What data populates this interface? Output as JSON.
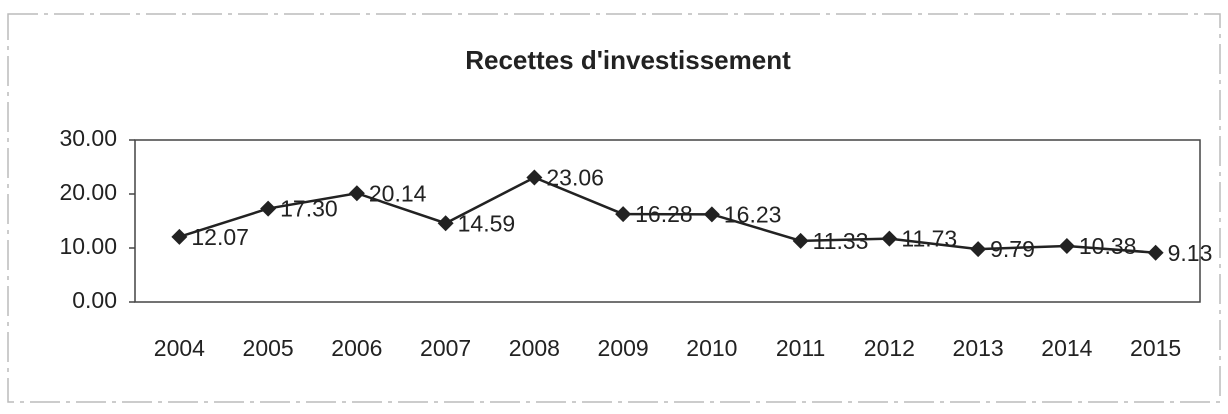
{
  "chart_data": {
    "type": "line",
    "title": "Recettes d'investissement",
    "categories": [
      "2004",
      "2005",
      "2006",
      "2007",
      "2008",
      "2009",
      "2010",
      "2011",
      "2012",
      "2013",
      "2014",
      "2015"
    ],
    "values": [
      12.07,
      17.3,
      20.14,
      14.59,
      23.06,
      16.28,
      16.23,
      11.33,
      11.73,
      9.79,
      10.38,
      9.13
    ],
    "value_labels": [
      "12.07",
      "17.30",
      "20.14",
      "14.59",
      "23.06",
      "16.28",
      "16.23",
      "11.33",
      "11.73",
      "9.79",
      "10.38",
      "9.13"
    ],
    "color": "#222222",
    "ylim": [
      0,
      30
    ],
    "yticks": [
      {
        "value": 0,
        "label": "0.00"
      },
      {
        "value": 10,
        "label": "10.00"
      },
      {
        "value": 20,
        "label": "20.00"
      },
      {
        "value": 30,
        "label": "30.00"
      }
    ],
    "grid": false
  }
}
